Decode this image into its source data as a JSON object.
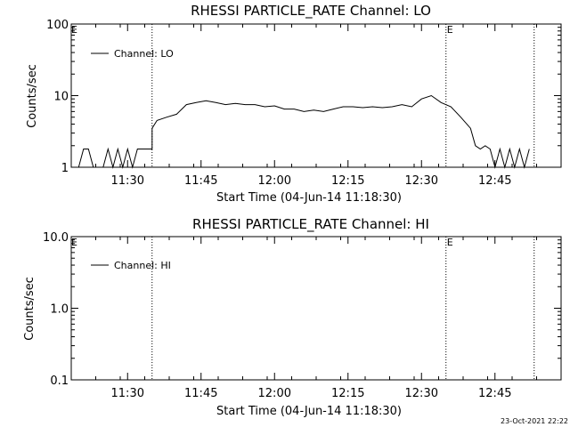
{
  "chart_data": [
    {
      "type": "line",
      "title": "RHESSI PARTICLE_RATE Channel: LO",
      "xlabel": "Start Time (04-Jun-14 11:18:30)",
      "ylabel": "Counts/sec",
      "yscale": "log",
      "ylim": [
        1,
        100
      ],
      "xlim_minutes_from_start": [
        0,
        100
      ],
      "x_ticks": [
        "11:30",
        "11:45",
        "12:00",
        "12:15",
        "12:30",
        "12:45"
      ],
      "y_ticks": [
        "1",
        "10",
        "100"
      ],
      "legend": "Channel: LO",
      "legend_position": "top-left",
      "markers": [
        {
          "label": "",
          "time": "11:35"
        },
        {
          "label": "E",
          "time": "12:35"
        },
        {
          "label": "",
          "time": "12:53"
        }
      ],
      "corner_label": "E",
      "series": [
        {
          "name": "Channel: LO",
          "x": [
            "11:20",
            "11:21",
            "11:22",
            "11:23",
            "11:24",
            "11:25",
            "11:26",
            "11:27",
            "11:28",
            "11:29",
            "11:30",
            "11:31",
            "11:32",
            "11:33",
            "11:34",
            "11:35",
            "11:35",
            "11:36",
            "11:38",
            "11:40",
            "11:42",
            "11:44",
            "11:46",
            "11:48",
            "11:50",
            "11:52",
            "11:54",
            "11:56",
            "11:58",
            "12:00",
            "12:02",
            "12:04",
            "12:06",
            "12:08",
            "12:10",
            "12:12",
            "12:14",
            "12:16",
            "12:18",
            "12:20",
            "12:22",
            "12:24",
            "12:26",
            "12:28",
            "12:30",
            "12:32",
            "12:34",
            "12:36",
            "12:38",
            "12:40",
            "12:41",
            "12:42",
            "12:43",
            "12:44",
            "12:45",
            "12:46",
            "12:47",
            "12:48",
            "12:49",
            "12:50",
            "12:51",
            "12:52"
          ],
          "y": [
            1,
            1.8,
            1.8,
            1,
            1,
            1,
            1.8,
            1,
            1.8,
            1,
            1.8,
            1,
            1.8,
            1.8,
            1.8,
            1.8,
            3.5,
            4.5,
            5,
            5.5,
            7.5,
            8,
            8.5,
            8,
            7.5,
            7.8,
            7.5,
            7.5,
            7,
            7.2,
            6.5,
            6.5,
            6,
            6.3,
            6,
            6.5,
            7,
            7,
            6.8,
            7,
            6.8,
            7,
            7.5,
            7,
            9,
            10,
            8,
            7,
            5,
            3.5,
            2,
            1.8,
            2,
            1.8,
            1,
            1.8,
            1,
            1.8,
            1,
            1.8,
            1,
            1.8
          ]
        }
      ]
    },
    {
      "type": "line",
      "title": "RHESSI PARTICLE_RATE Channel: HI",
      "xlabel": "Start Time (04-Jun-14 11:18:30)",
      "ylabel": "Counts/sec",
      "yscale": "log",
      "ylim": [
        0.1,
        10
      ],
      "xlim_minutes_from_start": [
        0,
        100
      ],
      "x_ticks": [
        "11:30",
        "11:45",
        "12:00",
        "12:15",
        "12:30",
        "12:45"
      ],
      "y_ticks": [
        "0.1",
        "1.0",
        "10.0"
      ],
      "legend": "Channel: HI",
      "legend_position": "top-left",
      "markers": [
        {
          "label": "",
          "time": "11:35"
        },
        {
          "label": "E",
          "time": "12:35"
        },
        {
          "label": "",
          "time": "12:53"
        }
      ],
      "corner_label": "E",
      "series": [
        {
          "name": "Channel: HI",
          "x": [],
          "y": []
        }
      ]
    }
  ],
  "footer": {
    "timestamp": "23-Oct-2021 22:22"
  }
}
